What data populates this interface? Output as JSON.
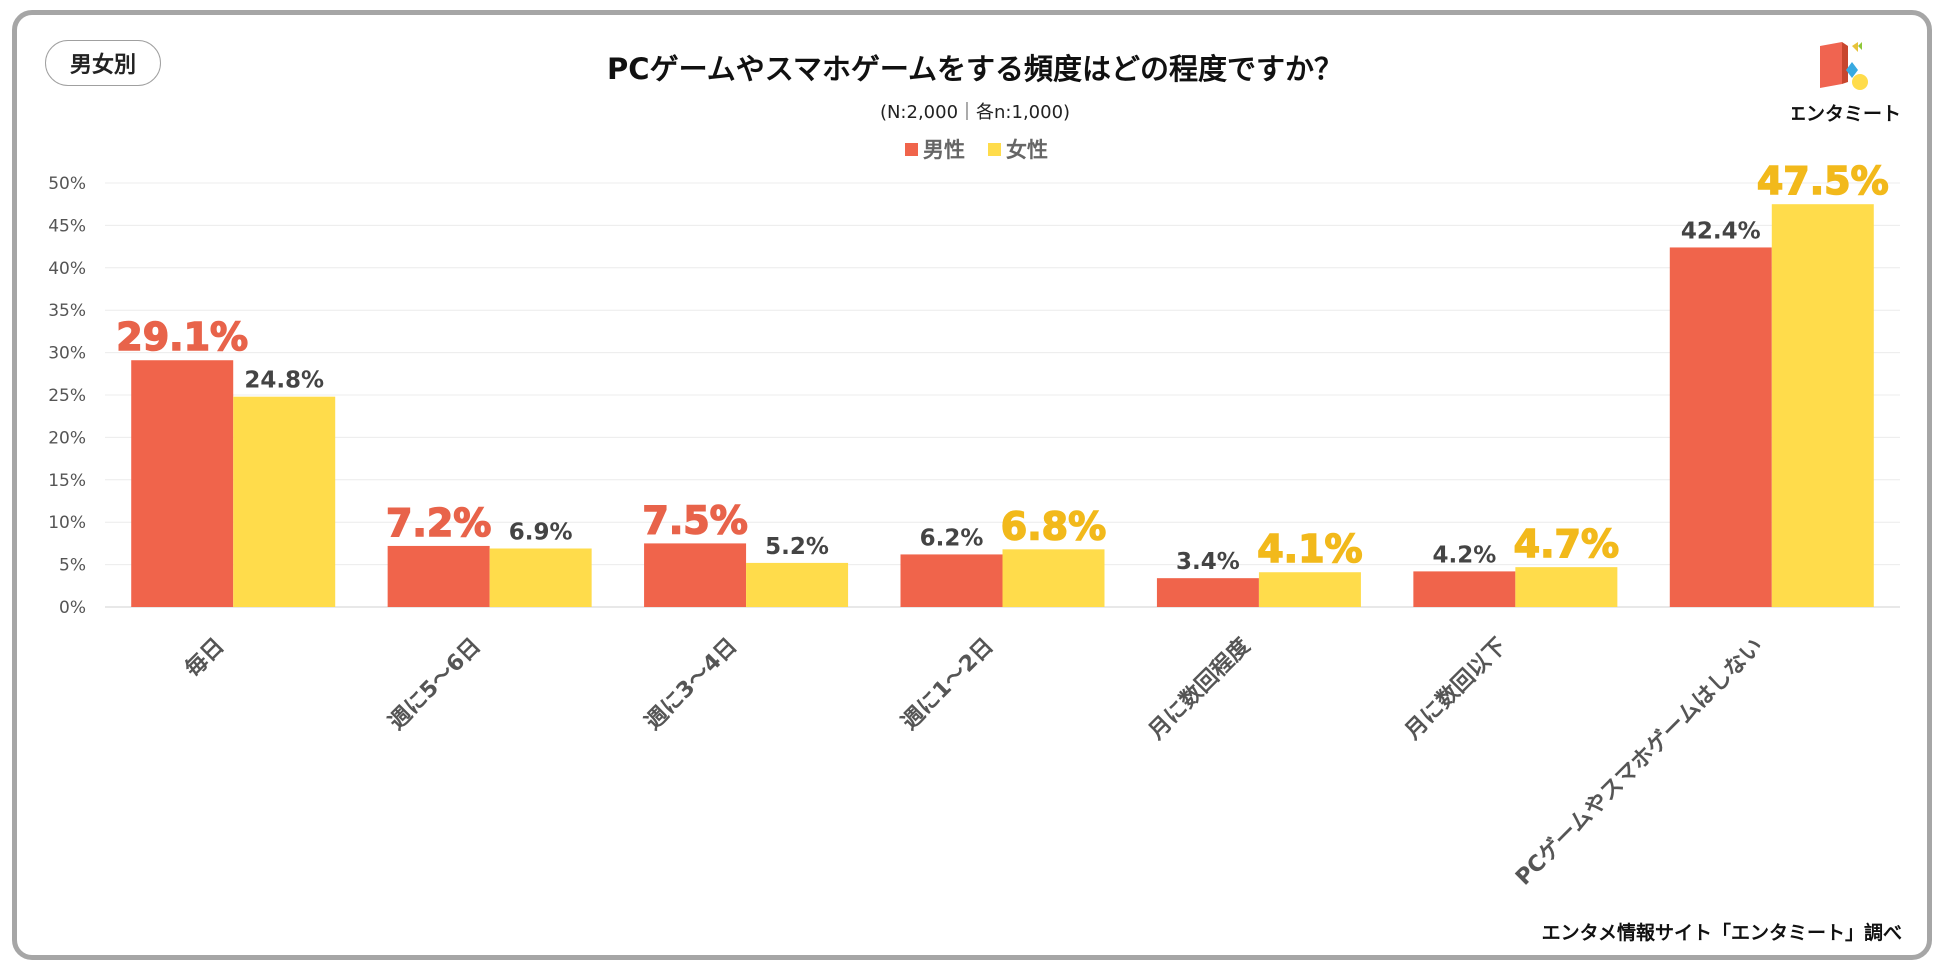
{
  "badge": "男女別",
  "title": "PCゲームやスマホゲームをする頻度はどの程度ですか？",
  "subtitle": "(N:2,000｜各n:1,000)",
  "logo_text": "エンタミート",
  "source": "エンタメ情報サイト「エンタミート」調べ",
  "colors": {
    "male": "#f0644b",
    "female": "#ffdc4b",
    "male_label": "#e8634a",
    "female_label": "#f2b91b"
  },
  "chart_data": {
    "type": "bar",
    "title": "PCゲームやスマホゲームをする頻度はどの程度ですか？",
    "categories": [
      "毎日",
      "週に5～6日",
      "週に3～4日",
      "週に1～2日",
      "月に数回程度",
      "月に数回以下",
      "PCゲームやスマホゲームはしない"
    ],
    "series": [
      {
        "name": "男性",
        "values": [
          29.1,
          7.2,
          7.5,
          6.2,
          3.4,
          4.2,
          42.4
        ],
        "labels": [
          "29.1%",
          "7.2%",
          "7.5%",
          "6.2%",
          "3.4%",
          "4.2%",
          "42.4%"
        ],
        "highlight": [
          true,
          true,
          true,
          false,
          false,
          false,
          false
        ]
      },
      {
        "name": "女性",
        "values": [
          24.8,
          6.9,
          5.2,
          6.8,
          4.1,
          4.7,
          47.5
        ],
        "labels": [
          "24.8%",
          "6.9%",
          "5.2%",
          "6.8%",
          "4.1%",
          "4.7%",
          "47.5%"
        ],
        "highlight": [
          false,
          false,
          false,
          true,
          true,
          true,
          true
        ]
      }
    ],
    "yticks": [
      "0%",
      "5%",
      "10%",
      "15%",
      "20%",
      "25%",
      "30%",
      "35%",
      "40%",
      "45%",
      "50%"
    ],
    "ylim": [
      0,
      50
    ],
    "grid": true,
    "legend": "top-center"
  }
}
